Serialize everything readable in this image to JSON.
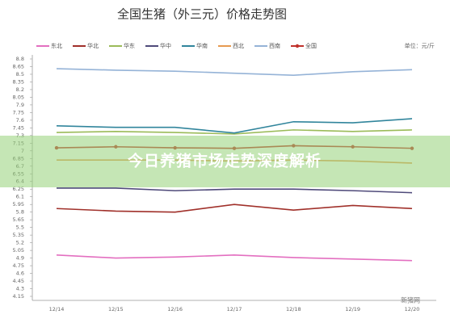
{
  "chart_data": {
    "type": "line",
    "title": "全国生猪（外三元）价格走势图",
    "unit_label": "单位：元/斤",
    "categories": [
      "12/14",
      "12/15",
      "12/16",
      "12/17",
      "12/18",
      "12/19",
      "12/20"
    ],
    "ylim": [
      4.15,
      8.8
    ],
    "yticks": [
      8.8,
      8.65,
      8.5,
      8.35,
      8.2,
      8.05,
      7.9,
      7.75,
      7.6,
      7.45,
      7.3,
      7.15,
      7,
      6.85,
      6.7,
      6.55,
      6.4,
      6.25,
      6.1,
      5.95,
      5.8,
      5.65,
      5.5,
      5.35,
      5.2,
      5.05,
      4.9,
      4.75,
      4.6,
      4.45,
      4.3,
      4.15
    ],
    "grid": false,
    "series": [
      {
        "name": "东北",
        "color": "#e36fc0",
        "values": [
          4.96,
          4.9,
          4.92,
          4.96,
          4.91,
          4.88,
          4.85
        ]
      },
      {
        "name": "华北",
        "color": "#a0302a",
        "values": [
          5.87,
          5.82,
          5.8,
          5.95,
          5.84,
          5.93,
          5.87
        ]
      },
      {
        "name": "华东",
        "color": "#9bbb59",
        "values": [
          7.36,
          7.38,
          7.36,
          7.33,
          7.41,
          7.38,
          7.41
        ]
      },
      {
        "name": "华中",
        "color": "#4f4a7a",
        "values": [
          6.27,
          6.27,
          6.22,
          6.25,
          6.25,
          6.22,
          6.18
        ]
      },
      {
        "name": "华南",
        "color": "#31859c",
        "values": [
          7.49,
          7.46,
          7.46,
          7.35,
          7.57,
          7.55,
          7.63
        ]
      },
      {
        "name": "西北",
        "color": "#e69a50",
        "values": [
          6.82,
          6.82,
          6.82,
          6.8,
          6.82,
          6.8,
          6.76
        ]
      },
      {
        "name": "西南",
        "color": "#95b3d7",
        "values": [
          8.61,
          8.58,
          8.56,
          8.52,
          8.48,
          8.55,
          8.59
        ]
      },
      {
        "name": "全国",
        "color": "#c0312b",
        "marker": true,
        "values": [
          7.06,
          7.08,
          7.06,
          7.05,
          7.1,
          7.08,
          7.05
        ]
      }
    ]
  },
  "banner": "今日养猪市场走势深度解析",
  "watermark": "新猪网"
}
